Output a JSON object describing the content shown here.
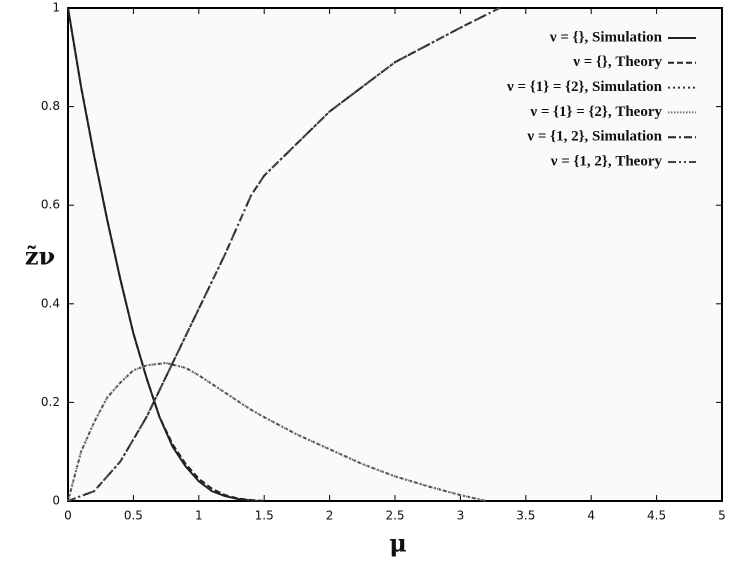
{
  "chart_data": {
    "type": "line",
    "xlabel": "μ",
    "ylabel": "z̃ν",
    "xlim": [
      0,
      5
    ],
    "ylim": [
      0,
      1
    ],
    "xticks": [
      0,
      0.5,
      1,
      1.5,
      2,
      2.5,
      3,
      3.5,
      4,
      4.5,
      5
    ],
    "yticks": [
      0,
      0.2,
      0.4,
      0.6,
      0.8,
      1
    ],
    "grid": false,
    "legend": "upper right",
    "series": [
      {
        "name": "ν = {}, Simulation",
        "color": "#222222",
        "linestyle": "solid",
        "x": [
          0,
          0.1,
          0.2,
          0.3,
          0.4,
          0.5,
          0.6,
          0.7,
          0.8,
          0.9,
          1.0,
          1.1,
          1.2,
          1.3,
          1.4,
          1.45
        ],
        "values": [
          1,
          0.84,
          0.7,
          0.57,
          0.45,
          0.34,
          0.25,
          0.17,
          0.11,
          0.07,
          0.04,
          0.02,
          0.01,
          0.004,
          0.001,
          0
        ]
      },
      {
        "name": "ν = {}, Theory",
        "color": "#222222",
        "linestyle": "dashed",
        "x": [
          0,
          0.1,
          0.2,
          0.3,
          0.4,
          0.5,
          0.6,
          0.7,
          0.8,
          0.9,
          1.0,
          1.1,
          1.2,
          1.3,
          1.4,
          1.5
        ],
        "values": [
          1,
          0.84,
          0.7,
          0.57,
          0.45,
          0.34,
          0.25,
          0.17,
          0.115,
          0.075,
          0.045,
          0.025,
          0.012,
          0.005,
          0.002,
          0
        ]
      },
      {
        "name": "ν = {1} = {2}, Simulation",
        "color": "#333333",
        "linestyle": "dotted",
        "x": [
          0,
          0.1,
          0.2,
          0.3,
          0.4,
          0.5,
          0.6,
          0.75,
          0.9,
          1.0,
          1.2,
          1.4,
          1.5,
          1.75,
          2.0,
          2.25,
          2.5,
          2.75,
          3.0,
          3.2
        ],
        "values": [
          0,
          0.1,
          0.16,
          0.21,
          0.24,
          0.265,
          0.275,
          0.28,
          0.27,
          0.255,
          0.22,
          0.185,
          0.17,
          0.135,
          0.105,
          0.075,
          0.05,
          0.03,
          0.012,
          0
        ]
      },
      {
        "name": "ν = {1} = {2}, Theory",
        "color": "#777777",
        "linestyle": "dense-dotted",
        "x": [
          0,
          0.1,
          0.2,
          0.3,
          0.4,
          0.5,
          0.6,
          0.75,
          0.9,
          1.0,
          1.2,
          1.4,
          1.5,
          1.75,
          2.0,
          2.25,
          2.5,
          2.75,
          3.0,
          3.2
        ],
        "values": [
          0,
          0.1,
          0.16,
          0.21,
          0.24,
          0.265,
          0.275,
          0.28,
          0.27,
          0.255,
          0.22,
          0.185,
          0.17,
          0.135,
          0.105,
          0.075,
          0.05,
          0.03,
          0.012,
          0
        ]
      },
      {
        "name": "ν = {1, 2}, Simulation",
        "color": "#222222",
        "linestyle": "dashdot",
        "x": [
          0,
          0.2,
          0.4,
          0.6,
          0.8,
          1.0,
          1.2,
          1.4,
          1.5,
          2.0,
          2.5,
          3.0,
          3.3
        ],
        "values": [
          0,
          0.02,
          0.08,
          0.17,
          0.28,
          0.39,
          0.5,
          0.62,
          0.66,
          0.79,
          0.89,
          0.96,
          1
        ]
      },
      {
        "name": "ν = {1, 2}, Theory",
        "color": "#444444",
        "linestyle": "dashdotdot",
        "x": [
          0,
          0.2,
          0.4,
          0.6,
          0.8,
          1.0,
          1.2,
          1.4,
          1.5,
          2.0,
          2.5,
          3.0,
          3.3
        ],
        "values": [
          0,
          0.02,
          0.08,
          0.17,
          0.28,
          0.39,
          0.5,
          0.62,
          0.66,
          0.79,
          0.89,
          0.96,
          1
        ]
      }
    ]
  }
}
